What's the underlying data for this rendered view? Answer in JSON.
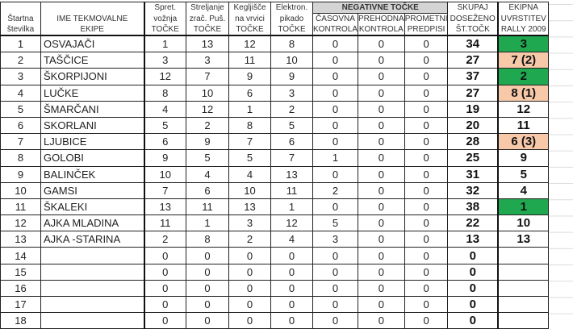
{
  "headers": {
    "start_no": [
      "Štartna",
      "številka"
    ],
    "team": [
      "IME TEKMOVALNE",
      "EKIPE"
    ],
    "driving": [
      "Spret.",
      "vožnja",
      "TOČKE"
    ],
    "shooting": [
      "Streljanje",
      "zrač. Puš.",
      "TOČKE"
    ],
    "bowling": [
      "Kegljišče",
      "na vrvici",
      "TOČKE"
    ],
    "darts": [
      "Elektron.",
      "pikado",
      "TOČKE"
    ],
    "negative_group": "NEGATIVNE TOČKE",
    "time_control": [
      "ČASOVNA",
      "KONTROLA"
    ],
    "pass_control": [
      "PREHODNA",
      "KONTROLA"
    ],
    "traffic": [
      "PROMETNI",
      "PREDPISI"
    ],
    "total": [
      "SKUPAJ",
      "DOSEŽENO",
      "ŠT.TOČK"
    ],
    "ranking": [
      "EKIPNA",
      "UVRSTITEV",
      "RALLY 2009"
    ]
  },
  "colors": {
    "green": "#1fa84f",
    "peach": "#f7c9a9"
  },
  "rows": [
    {
      "no": "1",
      "team": "OSVAJAČI",
      "v": [
        "1",
        "13",
        "12",
        "8",
        "0",
        "0",
        "0"
      ],
      "total": "34",
      "rank": "3",
      "hl": "green"
    },
    {
      "no": "2",
      "team": "TAŠČICE",
      "v": [
        "3",
        "3",
        "11",
        "10",
        "0",
        "0",
        "0"
      ],
      "total": "27",
      "rank": "7 (2)",
      "hl": "peach"
    },
    {
      "no": "3",
      "team": "ŠKORPIJONI",
      "v": [
        "12",
        "7",
        "9",
        "9",
        "0",
        "0",
        "0"
      ],
      "total": "37",
      "rank": "2",
      "hl": "green"
    },
    {
      "no": "4",
      "team": "LUČKE",
      "v": [
        "8",
        "10",
        "6",
        "3",
        "0",
        "0",
        "0"
      ],
      "total": "27",
      "rank": "8 (1)",
      "hl": "peach"
    },
    {
      "no": "5",
      "team": "ŠMARČANI",
      "v": [
        "4",
        "12",
        "1",
        "2",
        "0",
        "0",
        "0"
      ],
      "total": "19",
      "rank": "12",
      "hl": ""
    },
    {
      "no": "6",
      "team": "SKORLANI",
      "v": [
        "5",
        "2",
        "8",
        "5",
        "0",
        "0",
        "0"
      ],
      "total": "20",
      "rank": "11",
      "hl": ""
    },
    {
      "no": "7",
      "team": "LJUBICE",
      "v": [
        "6",
        "9",
        "7",
        "6",
        "0",
        "0",
        "0"
      ],
      "total": "28",
      "rank": "6 (3)",
      "hl": "peach"
    },
    {
      "no": "8",
      "team": "GOLOBI",
      "v": [
        "9",
        "5",
        "5",
        "7",
        "1",
        "0",
        "0"
      ],
      "total": "25",
      "rank": "9",
      "hl": ""
    },
    {
      "no": "9",
      "team": "BALINČEK",
      "v": [
        "10",
        "4",
        "4",
        "13",
        "0",
        "0",
        "0"
      ],
      "total": "31",
      "rank": "5",
      "hl": ""
    },
    {
      "no": "10",
      "team": "GAMSI",
      "v": [
        "7",
        "6",
        "10",
        "11",
        "2",
        "0",
        "0"
      ],
      "total": "32",
      "rank": "4",
      "hl": ""
    },
    {
      "no": "11",
      "team": "ŠKALEKI",
      "v": [
        "13",
        "11",
        "13",
        "1",
        "0",
        "0",
        "0"
      ],
      "total": "38",
      "rank": "1",
      "hl": "green"
    },
    {
      "no": "12",
      "team": "AJKA MLADINA",
      "v": [
        "11",
        "1",
        "3",
        "12",
        "5",
        "0",
        "0"
      ],
      "total": "22",
      "rank": "10",
      "hl": ""
    },
    {
      "no": "13",
      "team": "AJKA -STARINA",
      "v": [
        "2",
        "8",
        "2",
        "4",
        "3",
        "0",
        "0"
      ],
      "total": "13",
      "rank": "13",
      "hl": ""
    },
    {
      "no": "14",
      "team": "",
      "v": [
        "0",
        "0",
        "0",
        "0",
        "0",
        "0",
        "0"
      ],
      "total": "0",
      "rank": "",
      "hl": ""
    },
    {
      "no": "15",
      "team": "",
      "v": [
        "0",
        "0",
        "0",
        "0",
        "0",
        "0",
        "0"
      ],
      "total": "0",
      "rank": "",
      "hl": ""
    },
    {
      "no": "16",
      "team": "",
      "v": [
        "0",
        "0",
        "0",
        "0",
        "0",
        "0",
        "0"
      ],
      "total": "0",
      "rank": "",
      "hl": ""
    },
    {
      "no": "17",
      "team": "",
      "v": [
        "0",
        "0",
        "0",
        "0",
        "0",
        "0",
        "0"
      ],
      "total": "0",
      "rank": "",
      "hl": ""
    },
    {
      "no": "18",
      "team": "",
      "v": [
        "0",
        "0",
        "0",
        "0",
        "0",
        "0",
        "0"
      ],
      "total": "0",
      "rank": "",
      "hl": ""
    }
  ]
}
